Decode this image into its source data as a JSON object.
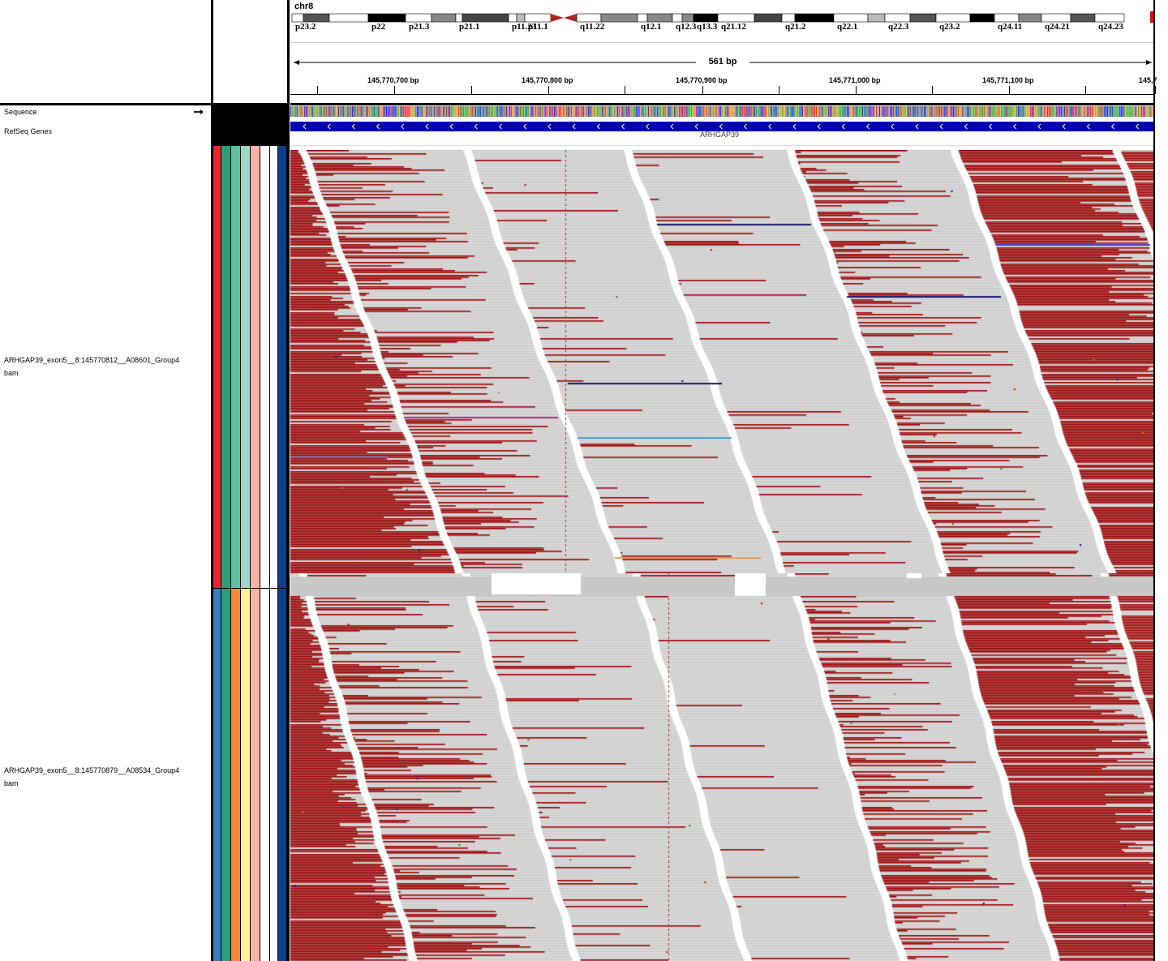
{
  "header": {
    "chromosome": "chr8",
    "span_label": "561 bp",
    "cytobands": [
      {
        "name": "p23.2",
        "shade": "#ffffff",
        "label": true
      },
      {
        "name": "",
        "shade": "#555555",
        "label": false
      },
      {
        "name": "",
        "shade": "#ffffff",
        "label": false
      },
      {
        "name": "p22",
        "shade": "#000000",
        "label": true
      },
      {
        "name": "p21.3",
        "shade": "#ffffff",
        "label": true
      },
      {
        "name": "",
        "shade": "#888888",
        "label": false
      },
      {
        "name": "p21.1",
        "shade": "#ffffff",
        "label": true
      },
      {
        "name": "",
        "shade": "#444444",
        "label": false
      },
      {
        "name": "p11.23",
        "shade": "#ffffff",
        "label": true
      },
      {
        "name": "",
        "shade": "#bbbbbb",
        "label": false
      },
      {
        "name": "p11.1",
        "shade": "#ffffff",
        "label": true
      },
      {
        "name": "cen",
        "shade": "#b22222",
        "label": false
      },
      {
        "name": "q11.22",
        "shade": "#ffffff",
        "label": true
      },
      {
        "name": "",
        "shade": "#888888",
        "label": false
      },
      {
        "name": "q12.1",
        "shade": "#ffffff",
        "label": true
      },
      {
        "name": "",
        "shade": "#888888",
        "label": false
      },
      {
        "name": "q12.3",
        "shade": "#ffffff",
        "label": true
      },
      {
        "name": "",
        "shade": "#888888",
        "label": false
      },
      {
        "name": "q13.3",
        "shade": "#000000",
        "label": true
      },
      {
        "name": "q21.12",
        "shade": "#ffffff",
        "label": true
      },
      {
        "name": "",
        "shade": "#444444",
        "label": false
      },
      {
        "name": "q21.2",
        "shade": "#ffffff",
        "label": true
      },
      {
        "name": "",
        "shade": "#000000",
        "label": false
      },
      {
        "name": "q22.1",
        "shade": "#ffffff",
        "label": true
      },
      {
        "name": "",
        "shade": "#bbbbbb",
        "label": false
      },
      {
        "name": "q22.3",
        "shade": "#ffffff",
        "label": true
      },
      {
        "name": "",
        "shade": "#555555",
        "label": false
      },
      {
        "name": "q23.2",
        "shade": "#ffffff",
        "label": true
      },
      {
        "name": "",
        "shade": "#000000",
        "label": false
      },
      {
        "name": "q24.11",
        "shade": "#ffffff",
        "label": true
      },
      {
        "name": "",
        "shade": "#888888",
        "label": false
      },
      {
        "name": "q24.21",
        "shade": "#ffffff",
        "label": true
      },
      {
        "name": "",
        "shade": "#555555",
        "label": false
      },
      {
        "name": "q24.23",
        "shade": "#ffffff",
        "label": true
      }
    ],
    "ruler_ticks": [
      "145,770,700 bp",
      "145,770,800 bp",
      "145,770,900 bp",
      "145,771,000 bp",
      "145,771,100 bp",
      "145,7"
    ]
  },
  "tracks": {
    "sequence_label": "Sequence",
    "refseq_label": "RefSeq Genes",
    "gene_name": "ARHGAP39",
    "alignments": [
      {
        "name_line1": "ARHGAP39_exon5__8:145770812__A08601_Group4",
        "name_line2": "bam",
        "attr_colors": [
          "#e8262a",
          "#2e9d7a",
          "#5fbf9e",
          "#9fd8c8",
          "#f7b3a8",
          "#ffffff",
          "#ffffff",
          "#0c3f8c"
        ]
      },
      {
        "name_line1": "ARHGAP39_exon5__8:145770879__A08534_Group4",
        "name_line2": "bam",
        "attr_colors": [
          "#3a7dbb",
          "#2e9d7a",
          "#f58a3a",
          "#fff29a",
          "#f7b3a8",
          "#ffffff",
          "#ffffff",
          "#0c3f8c"
        ]
      }
    ]
  },
  "colors": {
    "read_grey": "#c8c8c8",
    "read_dark_red": "#990000",
    "gene_blue": "#0000b2",
    "mismatch_red": "#d0202a"
  }
}
